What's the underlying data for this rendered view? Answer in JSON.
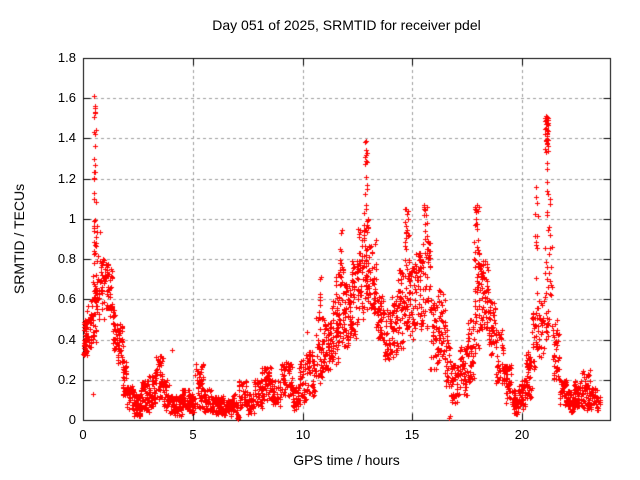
{
  "chart_data": {
    "type": "scatter",
    "title": "Day 051 of 2025, SRMTID for receiver pdel",
    "xlabel": "GPS time / hours",
    "ylabel": "SRMTID / TECUs",
    "xlim": [
      0,
      24
    ],
    "ylim": [
      0,
      1.8
    ],
    "xticks": [
      0,
      5,
      10,
      15,
      20
    ],
    "xtick_labels": [
      "0",
      "5",
      "10",
      "15",
      "20"
    ],
    "yticks": [
      0,
      0.2,
      0.4,
      0.6,
      0.8,
      1,
      1.2,
      1.4,
      1.6,
      1.8
    ],
    "ytick_labels": [
      "0",
      "0.2",
      "0.4",
      "0.6",
      "0.8",
      "1",
      "1.2",
      "1.4",
      "1.6",
      "1.8"
    ],
    "grid": "dashed",
    "legend": "none",
    "background": "#ffffff",
    "axis_color": "#000000",
    "grid_color": "#9e9e9e",
    "series": [
      {
        "name": "SRMTID",
        "marker": "plus",
        "color": "#ff0000",
        "marker_size_px": 5,
        "extreme_points": [
          [
            0.52,
            1.61
          ],
          [
            0.53,
            1.56
          ],
          [
            0.53,
            1.53
          ],
          [
            0.52,
            1.43
          ],
          [
            0.54,
            1.42
          ],
          [
            0.52,
            1.3
          ],
          [
            0.53,
            1.27
          ],
          [
            0.52,
            1.2
          ],
          [
            12.85,
            1.38
          ],
          [
            12.88,
            1.32
          ],
          [
            12.9,
            1.29
          ],
          [
            12.87,
            1.21
          ],
          [
            12.92,
            1.15
          ],
          [
            14.68,
            1.05
          ],
          [
            15.52,
            1.07
          ],
          [
            15.62,
            1.02
          ],
          [
            17.95,
            1.07
          ],
          [
            18.0,
            1.04
          ],
          [
            20.65,
            1.16
          ],
          [
            20.68,
            1.08
          ],
          [
            21.08,
            1.51
          ],
          [
            21.1,
            1.47
          ],
          [
            21.25,
            1.1
          ]
        ],
        "isolated_points": [
          [
            0.45,
            0.13
          ],
          [
            4.05,
            0.35
          ],
          [
            10.2,
            0.44
          ],
          [
            7.05,
            0.01
          ],
          [
            16.68,
            0.01
          ],
          [
            16.72,
            0.02
          ]
        ],
        "density_clusters": [
          [
            0.02,
            0.2,
            0.32,
            0.5,
            55
          ],
          [
            0.2,
            0.45,
            0.35,
            0.62,
            30
          ],
          [
            0.45,
            0.62,
            0.38,
            0.9,
            40
          ],
          [
            0.48,
            0.6,
            0.9,
            1.2,
            8
          ],
          [
            0.5,
            0.58,
            1.2,
            1.45,
            6
          ],
          [
            0.5,
            0.56,
            1.45,
            1.62,
            4
          ],
          [
            0.6,
            0.8,
            0.5,
            0.98,
            22
          ],
          [
            0.8,
            1.0,
            0.5,
            0.8,
            28
          ],
          [
            1.0,
            1.2,
            0.55,
            0.78,
            28
          ],
          [
            1.2,
            1.35,
            0.45,
            0.75,
            20
          ],
          [
            1.35,
            1.55,
            0.35,
            0.55,
            30
          ],
          [
            1.55,
            1.8,
            0.28,
            0.48,
            40
          ],
          [
            1.8,
            2.0,
            0.12,
            0.3,
            30
          ],
          [
            2.0,
            2.3,
            0.05,
            0.17,
            42
          ],
          [
            2.3,
            2.65,
            0.02,
            0.13,
            55
          ],
          [
            2.65,
            3.0,
            0.04,
            0.2,
            50
          ],
          [
            3.0,
            3.3,
            0.06,
            0.24,
            40
          ],
          [
            3.3,
            3.65,
            0.1,
            0.32,
            45
          ],
          [
            3.65,
            3.95,
            0.05,
            0.2,
            35
          ],
          [
            3.95,
            4.1,
            0.03,
            0.12,
            20
          ],
          [
            4.1,
            4.5,
            0.02,
            0.12,
            50
          ],
          [
            4.5,
            4.85,
            0.04,
            0.16,
            40
          ],
          [
            4.85,
            5.1,
            0.03,
            0.13,
            30
          ],
          [
            5.1,
            5.5,
            0.06,
            0.28,
            50
          ],
          [
            5.5,
            5.85,
            0.04,
            0.16,
            40
          ],
          [
            5.85,
            6.4,
            0.02,
            0.12,
            60
          ],
          [
            6.4,
            6.75,
            0.02,
            0.1,
            45
          ],
          [
            6.75,
            7.0,
            0.03,
            0.13,
            30
          ],
          [
            7.0,
            7.1,
            0.0,
            0.03,
            10
          ],
          [
            7.05,
            7.45,
            0.05,
            0.2,
            40
          ],
          [
            7.45,
            7.8,
            0.03,
            0.14,
            40
          ],
          [
            7.8,
            8.15,
            0.06,
            0.2,
            40
          ],
          [
            8.15,
            8.6,
            0.1,
            0.27,
            55
          ],
          [
            8.6,
            9.0,
            0.07,
            0.2,
            40
          ],
          [
            9.0,
            9.55,
            0.12,
            0.3,
            60
          ],
          [
            9.55,
            9.8,
            0.05,
            0.17,
            30
          ],
          [
            9.8,
            10.15,
            0.08,
            0.3,
            40
          ],
          [
            10.15,
            10.6,
            0.12,
            0.35,
            50
          ],
          [
            10.6,
            10.95,
            0.18,
            0.55,
            45
          ],
          [
            10.75,
            10.85,
            0.55,
            0.72,
            6
          ],
          [
            10.95,
            11.35,
            0.25,
            0.5,
            55
          ],
          [
            11.35,
            11.65,
            0.28,
            0.6,
            45
          ],
          [
            11.5,
            11.6,
            0.6,
            0.78,
            6
          ],
          [
            11.65,
            11.9,
            0.35,
            0.75,
            40
          ],
          [
            11.7,
            11.8,
            0.75,
            0.97,
            8
          ],
          [
            11.9,
            12.2,
            0.35,
            0.68,
            45
          ],
          [
            12.2,
            12.5,
            0.4,
            0.8,
            45
          ],
          [
            12.5,
            12.75,
            0.5,
            0.95,
            40
          ],
          [
            12.75,
            13.0,
            0.55,
            1.05,
            45
          ],
          [
            12.8,
            12.95,
            1.05,
            1.4,
            9
          ],
          [
            13.0,
            13.35,
            0.5,
            0.9,
            45
          ],
          [
            13.35,
            13.7,
            0.4,
            0.62,
            40
          ],
          [
            13.7,
            14.05,
            0.28,
            0.55,
            40
          ],
          [
            14.05,
            14.35,
            0.3,
            0.62,
            40
          ],
          [
            14.35,
            14.6,
            0.35,
            0.75,
            35
          ],
          [
            14.6,
            14.85,
            0.45,
            0.97,
            45
          ],
          [
            14.6,
            14.8,
            0.97,
            1.06,
            5
          ],
          [
            14.85,
            15.15,
            0.4,
            0.78,
            40
          ],
          [
            15.15,
            15.45,
            0.45,
            0.85,
            40
          ],
          [
            15.45,
            15.8,
            0.45,
            0.95,
            45
          ],
          [
            15.5,
            15.7,
            0.95,
            1.07,
            8
          ],
          [
            15.8,
            16.15,
            0.25,
            0.6,
            45
          ],
          [
            16.15,
            16.5,
            0.28,
            0.65,
            45
          ],
          [
            16.5,
            16.75,
            0.15,
            0.45,
            30
          ],
          [
            16.75,
            17.1,
            0.08,
            0.3,
            40
          ],
          [
            17.1,
            17.5,
            0.12,
            0.38,
            45
          ],
          [
            17.5,
            17.8,
            0.18,
            0.5,
            40
          ],
          [
            17.8,
            18.1,
            0.3,
            0.9,
            50
          ],
          [
            17.85,
            18.05,
            0.9,
            1.07,
            10
          ],
          [
            18.1,
            18.45,
            0.45,
            0.8,
            55
          ],
          [
            18.45,
            18.8,
            0.32,
            0.6,
            45
          ],
          [
            18.8,
            19.15,
            0.18,
            0.45,
            40
          ],
          [
            19.15,
            19.5,
            0.08,
            0.28,
            45
          ],
          [
            19.5,
            19.85,
            0.03,
            0.15,
            45
          ],
          [
            19.85,
            20.15,
            0.05,
            0.2,
            40
          ],
          [
            20.15,
            20.45,
            0.1,
            0.35,
            45
          ],
          [
            20.45,
            20.7,
            0.25,
            0.55,
            30
          ],
          [
            20.6,
            20.72,
            0.55,
            1.16,
            12
          ],
          [
            20.7,
            21.0,
            0.3,
            0.6,
            30
          ],
          [
            21.0,
            21.2,
            0.4,
            0.62,
            12
          ],
          [
            21.02,
            21.18,
            1.34,
            1.51,
            30
          ],
          [
            21.05,
            21.18,
            0.62,
            1.34,
            18
          ],
          [
            21.18,
            21.38,
            0.45,
            1.1,
            16
          ],
          [
            21.38,
            21.7,
            0.2,
            0.5,
            40
          ],
          [
            21.7,
            22.05,
            0.07,
            0.2,
            40
          ],
          [
            22.05,
            22.35,
            0.04,
            0.15,
            45
          ],
          [
            22.35,
            22.7,
            0.06,
            0.2,
            50
          ],
          [
            22.7,
            23.1,
            0.05,
            0.25,
            55
          ],
          [
            23.1,
            23.55,
            0.05,
            0.16,
            45
          ]
        ]
      }
    ]
  }
}
